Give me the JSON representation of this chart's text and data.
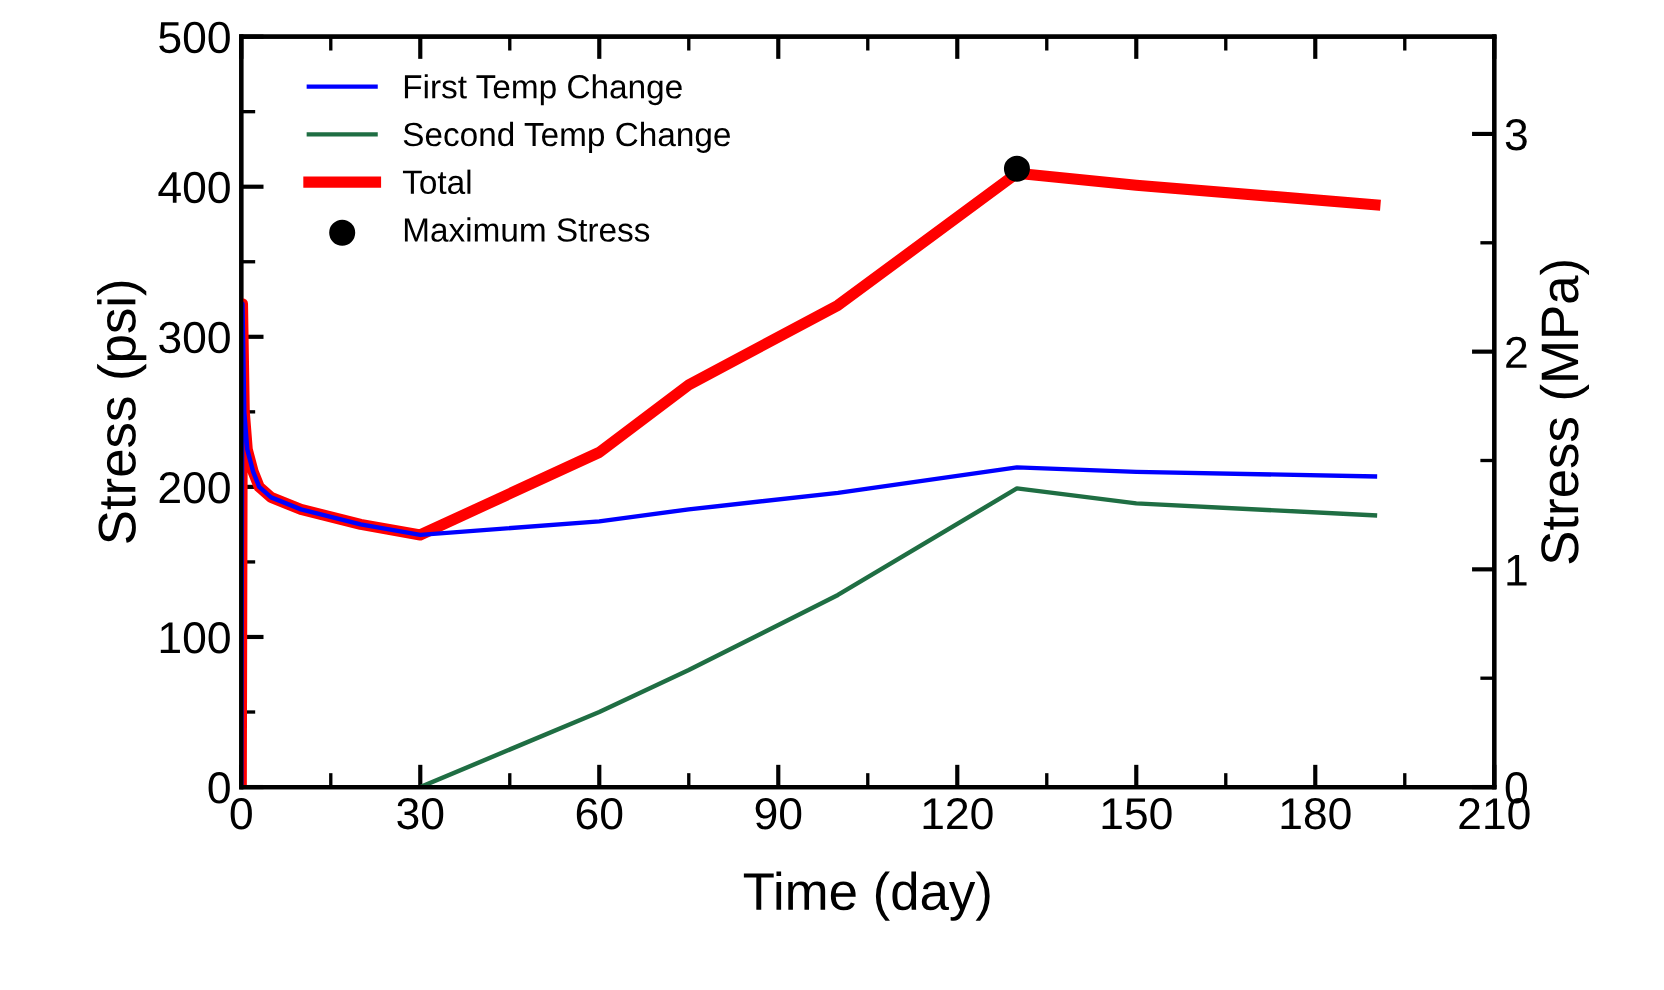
{
  "chart_data": {
    "type": "line",
    "xlabel": "Time (day)",
    "ylabel": "Stress (psi)",
    "y2label": "Stress (MPa)",
    "xlim": [
      0,
      210
    ],
    "xticks": [
      0,
      30,
      60,
      90,
      120,
      150,
      180,
      210
    ],
    "ylim": [
      0,
      500
    ],
    "yticks": [
      0,
      100,
      200,
      300,
      400,
      500
    ],
    "y2lim": [
      0,
      3.447
    ],
    "y2ticks": [
      0,
      1,
      2,
      3
    ],
    "grid": false,
    "legend": "top left",
    "line_style": "solid",
    "series": [
      {
        "name": "First Temp Change",
        "color": "#0000ff",
        "x": [
          0,
          0.2,
          0.5,
          1,
          2,
          3,
          5,
          10,
          20,
          30,
          60,
          75,
          100,
          130,
          150,
          190
        ],
        "values": [
          0,
          322,
          250,
          225,
          210,
          200,
          193,
          185,
          175,
          168,
          177,
          185,
          196,
          213,
          210,
          207
        ]
      },
      {
        "name": "Second Temp Change",
        "color": "#1f6e43",
        "x": [
          30,
          60,
          75,
          100,
          130,
          150,
          190
        ],
        "values": [
          0,
          50,
          78,
          128,
          199,
          189,
          181
        ]
      },
      {
        "name": "Total",
        "color": "#ff0000",
        "x": [
          0,
          0.2,
          0.5,
          1,
          2,
          3,
          5,
          10,
          20,
          30,
          60,
          75,
          100,
          130,
          150,
          190
        ],
        "values": [
          0,
          322,
          250,
          225,
          210,
          200,
          193,
          185,
          175,
          168,
          223,
          268,
          321,
          409,
          401,
          388
        ]
      },
      {
        "name": "Maximum Stress",
        "type": "scatter",
        "color": "#000000",
        "marker": "circle",
        "x": [
          130
        ],
        "values": [
          412
        ]
      }
    ]
  }
}
